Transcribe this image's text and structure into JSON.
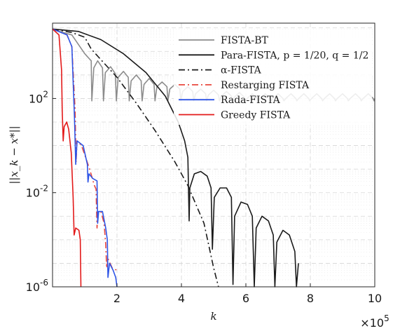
{
  "chart_data": {
    "type": "line",
    "xlabel": "k",
    "ylabel": "||x_k − x*||",
    "x_multiplier": "×10^5",
    "x_ticks": [
      "2",
      "4",
      "6",
      "8",
      "10"
    ],
    "y_ticks": [
      "10^2",
      "10^-2",
      "10^-6"
    ],
    "xlim": [
      0,
      1000000
    ],
    "ylim_log10": [
      -6,
      5.2
    ],
    "yscale": "log",
    "grid": true,
    "legend_position": "top-right",
    "series": [
      {
        "name": "FISTA-BT",
        "color": "#8c8c8c",
        "style": "solid",
        "points": [
          [
            0,
            4.93
          ],
          [
            60000,
            4.7
          ],
          [
            100000,
            3.9
          ],
          [
            120000,
            3.6
          ],
          [
            122000,
            1.9
          ],
          [
            128000,
            3.3
          ],
          [
            140000,
            3.6
          ],
          [
            155000,
            3.3
          ],
          [
            158000,
            1.9
          ],
          [
            164000,
            3.1
          ],
          [
            180000,
            3.35
          ],
          [
            195000,
            3.05
          ],
          [
            198000,
            1.9
          ],
          [
            204000,
            2.9
          ],
          [
            220000,
            3.15
          ],
          [
            235000,
            2.9
          ],
          [
            238000,
            1.9
          ],
          [
            244000,
            2.75
          ],
          [
            260000,
            3.0
          ],
          [
            275000,
            2.75
          ],
          [
            278000,
            1.9
          ],
          [
            284000,
            2.6
          ],
          [
            300000,
            2.85
          ],
          [
            315000,
            2.6
          ],
          [
            318000,
            1.9
          ],
          [
            324000,
            2.5
          ],
          [
            340000,
            2.7
          ],
          [
            355000,
            2.5
          ],
          [
            358000,
            1.9
          ],
          [
            364000,
            2.4
          ],
          [
            380000,
            2.6
          ],
          [
            395000,
            2.4
          ],
          [
            398000,
            1.9
          ],
          [
            404000,
            2.3
          ],
          [
            420000,
            2.5
          ],
          [
            435000,
            2.3
          ],
          [
            438000,
            1.9
          ],
          [
            444000,
            2.2
          ],
          [
            460000,
            2.4
          ],
          [
            475000,
            2.2
          ],
          [
            478000,
            1.9
          ],
          [
            484000,
            2.15
          ],
          [
            500000,
            2.35
          ],
          [
            515000,
            2.15
          ],
          [
            518000,
            1.9
          ],
          [
            524000,
            2.1
          ],
          [
            540000,
            2.3
          ],
          [
            555000,
            2.1
          ],
          [
            558000,
            1.9
          ],
          [
            564000,
            2.05
          ],
          [
            580000,
            2.25
          ],
          [
            595000,
            2.05
          ],
          [
            598000,
            1.9
          ],
          [
            604000,
            2.0
          ],
          [
            620000,
            2.2
          ],
          [
            635000,
            2.0
          ],
          [
            638000,
            1.9
          ],
          [
            644000,
            2.0
          ],
          [
            660000,
            2.2
          ],
          [
            675000,
            2.0
          ],
          [
            678000,
            1.9
          ],
          [
            684000,
            2.0
          ],
          [
            700000,
            2.2
          ],
          [
            715000,
            2.0
          ],
          [
            718000,
            1.9
          ],
          [
            724000,
            2.0
          ],
          [
            740000,
            2.2
          ],
          [
            755000,
            2.0
          ],
          [
            758000,
            1.9
          ],
          [
            764000,
            2.0
          ],
          [
            780000,
            2.2
          ],
          [
            795000,
            2.0
          ],
          [
            798000,
            1.9
          ],
          [
            804000,
            2.0
          ],
          [
            820000,
            2.2
          ],
          [
            835000,
            2.0
          ],
          [
            838000,
            1.9
          ],
          [
            844000,
            2.0
          ],
          [
            860000,
            2.2
          ],
          [
            875000,
            2.0
          ],
          [
            878000,
            1.9
          ],
          [
            884000,
            2.0
          ],
          [
            900000,
            2.2
          ],
          [
            915000,
            2.0
          ],
          [
            918000,
            1.9
          ],
          [
            924000,
            2.0
          ],
          [
            940000,
            2.2
          ],
          [
            955000,
            2.0
          ],
          [
            958000,
            1.9
          ],
          [
            964000,
            2.0
          ],
          [
            980000,
            2.2
          ],
          [
            995000,
            2.0
          ],
          [
            998000,
            1.9
          ],
          [
            1000000,
            2.0
          ]
        ]
      },
      {
        "name": "Para-FISTA, p = 1/20, q = 1/2",
        "color": "#1a1a1a",
        "style": "solid",
        "points": [
          [
            0,
            4.95
          ],
          [
            80000,
            4.85
          ],
          [
            150000,
            4.5
          ],
          [
            220000,
            3.9
          ],
          [
            290000,
            3.1
          ],
          [
            350000,
            2.1
          ],
          [
            390000,
            1.0
          ],
          [
            410000,
            0.2
          ],
          [
            420000,
            -0.5
          ],
          [
            424000,
            -3.2
          ],
          [
            426000,
            -1.8
          ],
          [
            440000,
            -1.2
          ],
          [
            460000,
            -1.1
          ],
          [
            480000,
            -1.3
          ],
          [
            492000,
            -1.8
          ],
          [
            496000,
            -4.4
          ],
          [
            502000,
            -2.2
          ],
          [
            520000,
            -1.8
          ],
          [
            540000,
            -1.8
          ],
          [
            555000,
            -2.2
          ],
          [
            560000,
            -5.9
          ],
          [
            565000,
            -3.0
          ],
          [
            585000,
            -2.4
          ],
          [
            605000,
            -2.5
          ],
          [
            620000,
            -3.0
          ],
          [
            626000,
            -6.0
          ],
          [
            632000,
            -3.5
          ],
          [
            650000,
            -3.0
          ],
          [
            670000,
            -3.2
          ],
          [
            685000,
            -3.8
          ],
          [
            690000,
            -6.0
          ],
          [
            696000,
            -4.1
          ],
          [
            715000,
            -3.6
          ],
          [
            735000,
            -3.8
          ],
          [
            752000,
            -4.5
          ],
          [
            757000,
            -6.0
          ],
          [
            763000,
            -5.0
          ]
        ]
      },
      {
        "name": "α-FISTA",
        "color": "#1a1a1a",
        "style": "dashdot",
        "points": [
          [
            0,
            4.95
          ],
          [
            60000,
            4.8
          ],
          [
            100000,
            4.6
          ],
          [
            120000,
            4.1
          ],
          [
            140000,
            3.8
          ],
          [
            200000,
            2.9
          ],
          [
            260000,
            1.8
          ],
          [
            320000,
            0.6
          ],
          [
            380000,
            -0.7
          ],
          [
            420000,
            -1.7
          ],
          [
            470000,
            -3.3
          ],
          [
            500000,
            -5.2
          ],
          [
            515000,
            -6.0
          ]
        ]
      },
      {
        "name": "Restarging FISTA",
        "color": "#e8483f",
        "style": "dashdot",
        "points": [
          [
            0,
            4.95
          ],
          [
            45000,
            4.7
          ],
          [
            60000,
            4.2
          ],
          [
            70000,
            1.5
          ],
          [
            73000,
            -0.7
          ],
          [
            76000,
            0.2
          ],
          [
            90000,
            0.0
          ],
          [
            115000,
            -1.0
          ],
          [
            130000,
            -1.7
          ],
          [
            135000,
            -1.85
          ],
          [
            138000,
            -3.5
          ],
          [
            142000,
            -2.8
          ],
          [
            150000,
            -2.8
          ],
          [
            160000,
            -3.3
          ],
          [
            165000,
            -4.2
          ],
          [
            168000,
            -5.2
          ],
          [
            172000,
            -4.8
          ],
          [
            185000,
            -5.2
          ],
          [
            200000,
            -5.3
          ]
        ]
      },
      {
        "name": "Rada-FISTA",
        "color": "#2e54e6",
        "style": "solid",
        "points": [
          [
            0,
            4.95
          ],
          [
            45000,
            4.7
          ],
          [
            60000,
            4.2
          ],
          [
            68000,
            1.2
          ],
          [
            72000,
            -0.8
          ],
          [
            76000,
            0.2
          ],
          [
            95000,
            0.0
          ],
          [
            108000,
            -0.8
          ],
          [
            110000,
            -1.55
          ],
          [
            113000,
            -1.2
          ],
          [
            125000,
            -1.4
          ],
          [
            138000,
            -1.5
          ],
          [
            140000,
            -3.3
          ],
          [
            143000,
            -2.8
          ],
          [
            155000,
            -2.8
          ],
          [
            165000,
            -3.5
          ],
          [
            170000,
            -4.0
          ],
          [
            172000,
            -5.6
          ],
          [
            177000,
            -5.0
          ],
          [
            188000,
            -5.3
          ],
          [
            196000,
            -5.6
          ],
          [
            200000,
            -6.0
          ]
        ]
      },
      {
        "name": "Greedy FISTA",
        "color": "#e31a1a",
        "style": "solid",
        "points": [
          [
            0,
            4.95
          ],
          [
            20000,
            4.7
          ],
          [
            28000,
            3.2
          ],
          [
            30000,
            1.5
          ],
          [
            33000,
            0.2
          ],
          [
            36000,
            0.8
          ],
          [
            44000,
            1.0
          ],
          [
            50000,
            0.7
          ],
          [
            58000,
            -0.3
          ],
          [
            64000,
            -2.2
          ],
          [
            67000,
            -3.8
          ],
          [
            72000,
            -3.5
          ],
          [
            82000,
            -3.6
          ],
          [
            86000,
            -4.0
          ],
          [
            88000,
            -6.0
          ]
        ]
      }
    ]
  }
}
